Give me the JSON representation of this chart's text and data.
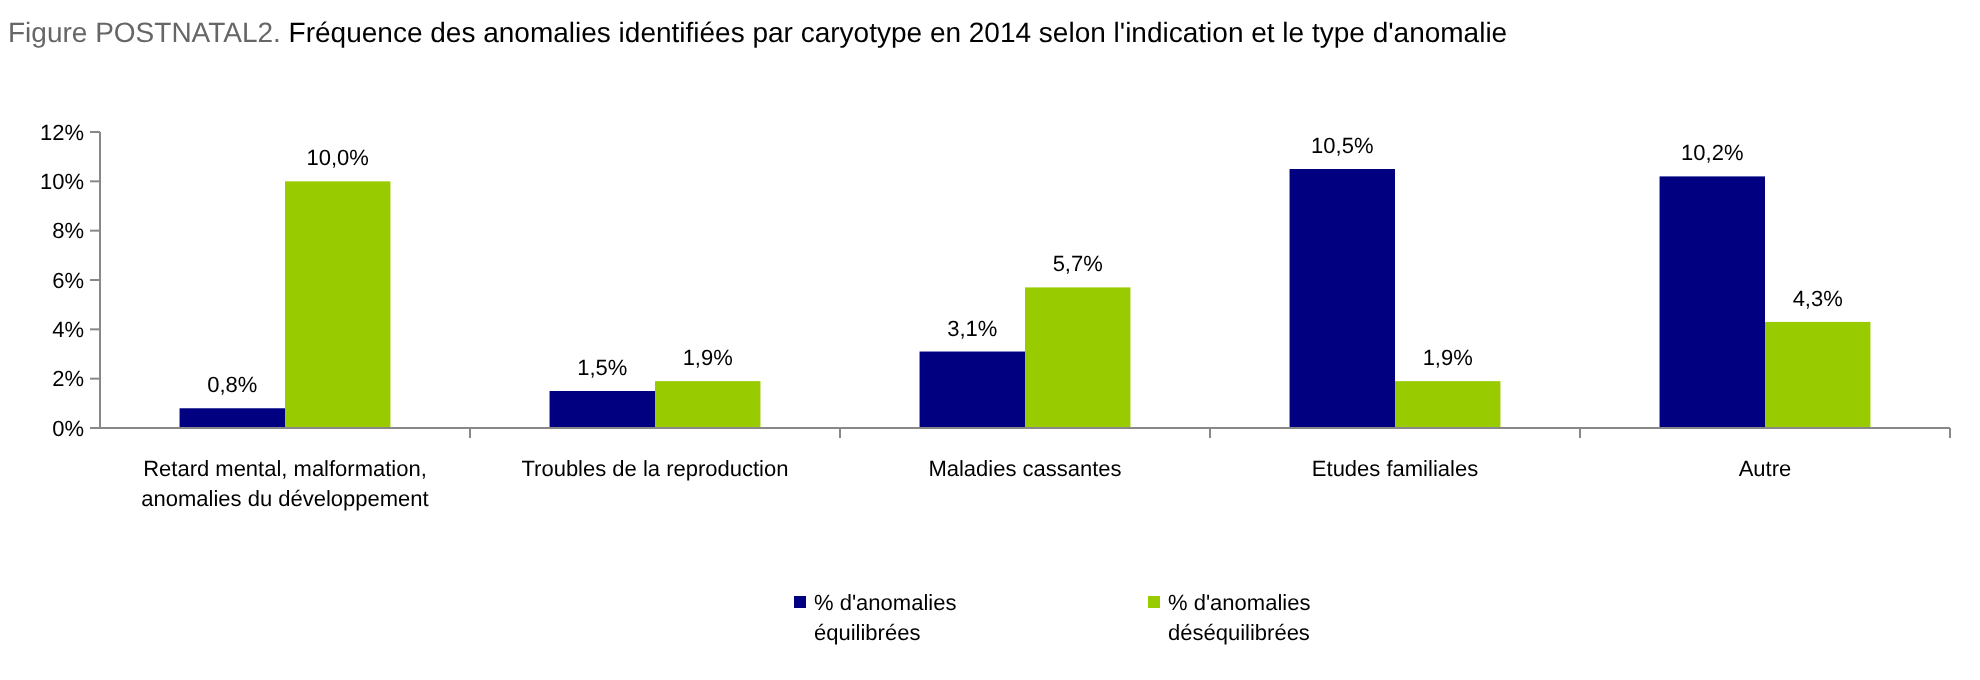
{
  "chart_data": {
    "type": "bar",
    "title": "Figure POSTNATAL2. Fréquence des anomalies identifiées par caryotype en 2014 selon l'indication et le type d'anomalie",
    "categories": [
      "Retard mental, malformation, anomalies du développement",
      "Troubles de la reproduction",
      "Maladies cassantes",
      "Etudes familiales",
      "Autre"
    ],
    "series": [
      {
        "name": "% d'anomalies équilibrées",
        "color": "#000080",
        "values": [
          0.8,
          1.5,
          3.1,
          10.5,
          10.2
        ],
        "value_labels": [
          "0,8%",
          "1,5%",
          "3,1%",
          "10,5%",
          "10,2%"
        ]
      },
      {
        "name": "% d'anomalies déséquilibrées",
        "color": "#99cc00",
        "values": [
          10.0,
          1.9,
          5.7,
          1.9,
          4.3
        ],
        "value_labels": [
          "10,0%",
          "1,9%",
          "5,7%",
          "1,9%",
          "4,3%"
        ]
      }
    ],
    "ylim": [
      0,
      12
    ],
    "yticks": [
      {
        "value": 0,
        "label": "0%"
      },
      {
        "value": 2,
        "label": "2%"
      },
      {
        "value": 4,
        "label": "4%"
      },
      {
        "value": 6,
        "label": "6%"
      },
      {
        "value": 8,
        "label": "8%"
      },
      {
        "value": 10,
        "label": "10%"
      },
      {
        "value": 12,
        "label": "12%"
      }
    ],
    "grid": false,
    "legend": "bottom"
  }
}
